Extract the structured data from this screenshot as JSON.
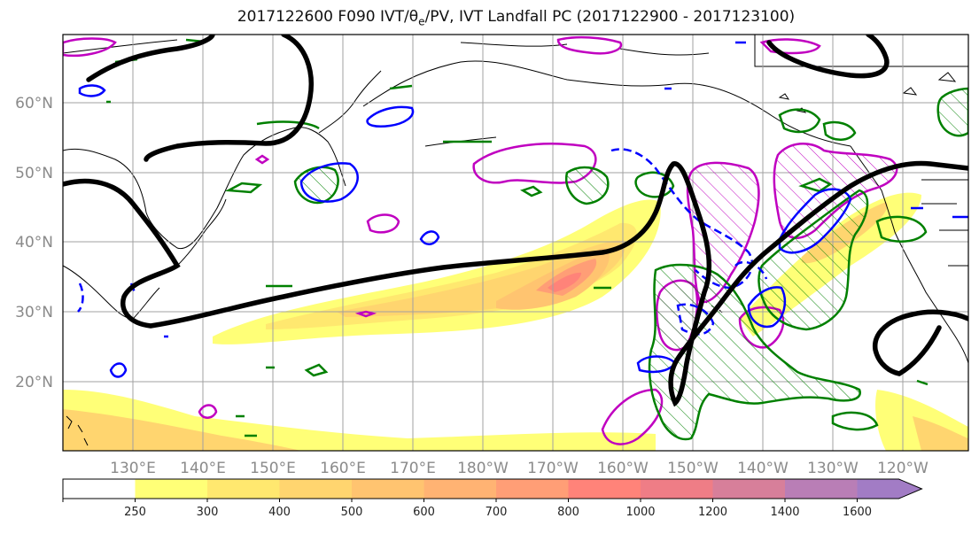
{
  "title": {
    "main": "2017122600 F090 IVT/θ",
    "sub": "e",
    "rest": "/PV, IVT Landfall PC (2017122900 - 2017123100)"
  },
  "map": {
    "lat_labels": [
      "60°N",
      "50°N",
      "40°N",
      "30°N",
      "20°N"
    ],
    "lon_labels": [
      "130°E",
      "140°E",
      "150°E",
      "160°E",
      "170°E",
      "180°W",
      "170°W",
      "160°W",
      "150°W",
      "140°W",
      "130°W",
      "120°W"
    ],
    "colors": {
      "pv_contour": "#000000",
      "theta_e_positive": "#008000",
      "theta_e_negative": "#0000ff",
      "landfall_pc": "#c000c0",
      "coast": "#000000",
      "grid": "#a0a0a0"
    }
  },
  "colorbar": {
    "levels": [
      "250",
      "300",
      "400",
      "500",
      "600",
      "700",
      "800",
      "1000",
      "1200",
      "1400",
      "1600"
    ],
    "colors": [
      "#ffffff",
      "#ffff77",
      "#ffe86f",
      "#ffd56f",
      "#ffc470",
      "#ffb373",
      "#ff9e76",
      "#ff8379",
      "#ef7d86",
      "#d77f9a",
      "#b97eb6",
      "#a27cc5"
    ]
  }
}
